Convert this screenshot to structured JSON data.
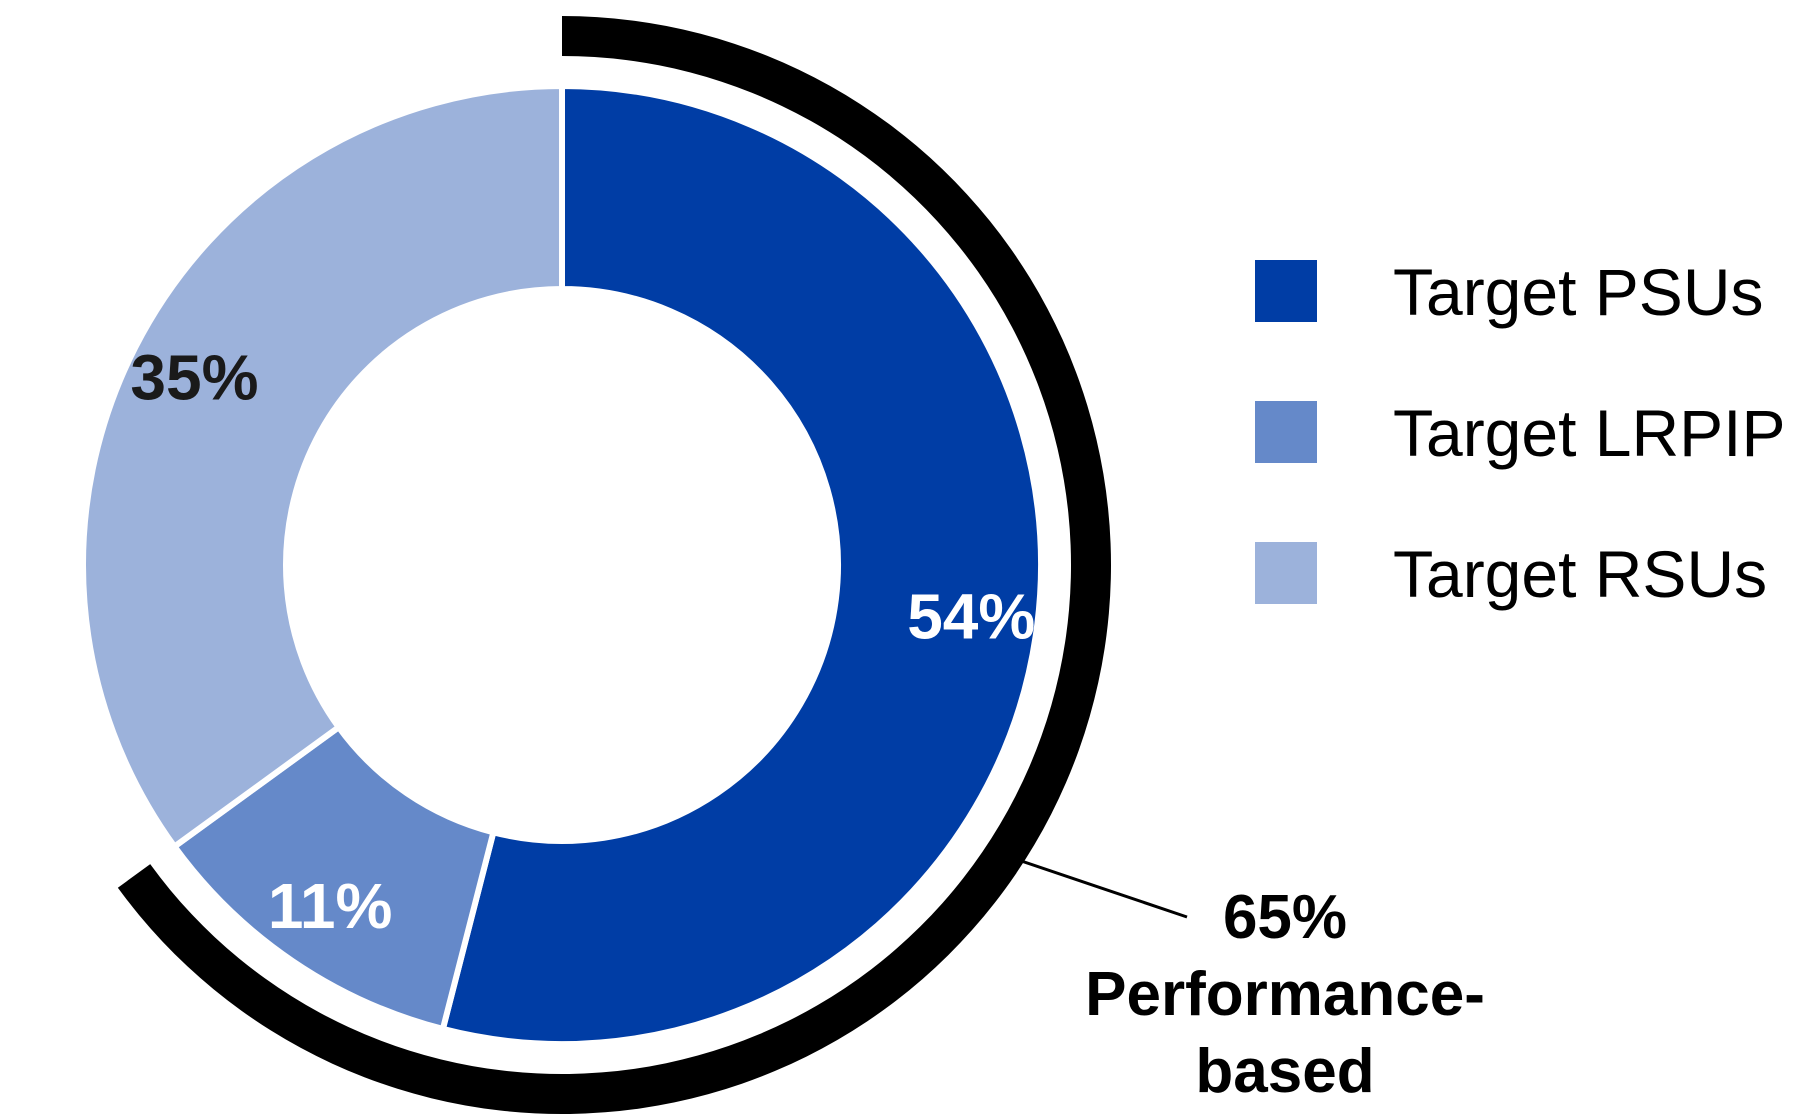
{
  "chart_data": {
    "type": "pie",
    "style": "donut",
    "title": "",
    "slices": [
      {
        "name": "Target PSUs",
        "value": 54,
        "label": "54%",
        "color": "#003DA5",
        "label_color": "#FFFFFF"
      },
      {
        "name": "Target LRPIP",
        "value": 11,
        "label": "11%",
        "color": "#6589C9",
        "label_color": "#FFFFFF"
      },
      {
        "name": "Target RSUs",
        "value": 35,
        "label": "35%",
        "color": "#9CB2DB",
        "label_color": "#1A1A1A"
      }
    ],
    "legend": {
      "placement": "right",
      "items": [
        "Target PSUs",
        "Target LRPIP",
        "Target RSUs"
      ]
    },
    "bracket": {
      "value": 65,
      "label_line1": "65%",
      "label_line2": "Performance-",
      "label_line3": "based",
      "color": "#000000"
    }
  }
}
